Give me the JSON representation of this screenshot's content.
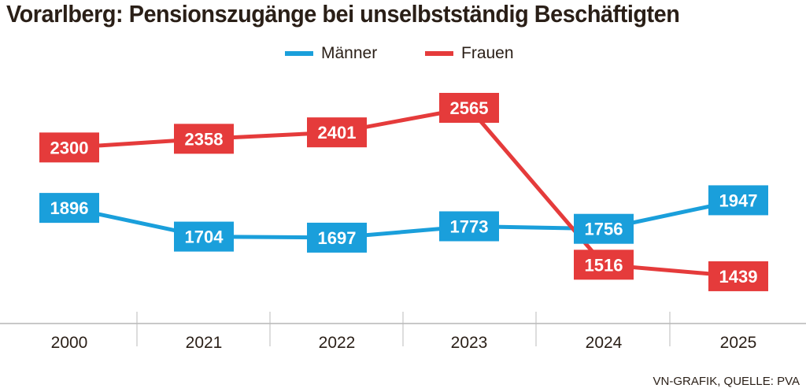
{
  "chart_data": {
    "type": "line",
    "title": "Vorarlberg: Pensionszugänge bei unselbstständig Beschäftigten",
    "categories": [
      "2000",
      "2021",
      "2022",
      "2023",
      "2024",
      "2025"
    ],
    "series": [
      {
        "name": "Männer",
        "color": "#1a9fdb",
        "values": [
          1896,
          1704,
          1697,
          1773,
          1756,
          1947
        ]
      },
      {
        "name": "Frauen",
        "color": "#e53b3b",
        "values": [
          2300,
          2358,
          2401,
          2565,
          1516,
          1439
        ]
      }
    ],
    "legend": "top-center",
    "grid": false,
    "source": "VN-GRAFIK, QUELLE: PVA"
  }
}
